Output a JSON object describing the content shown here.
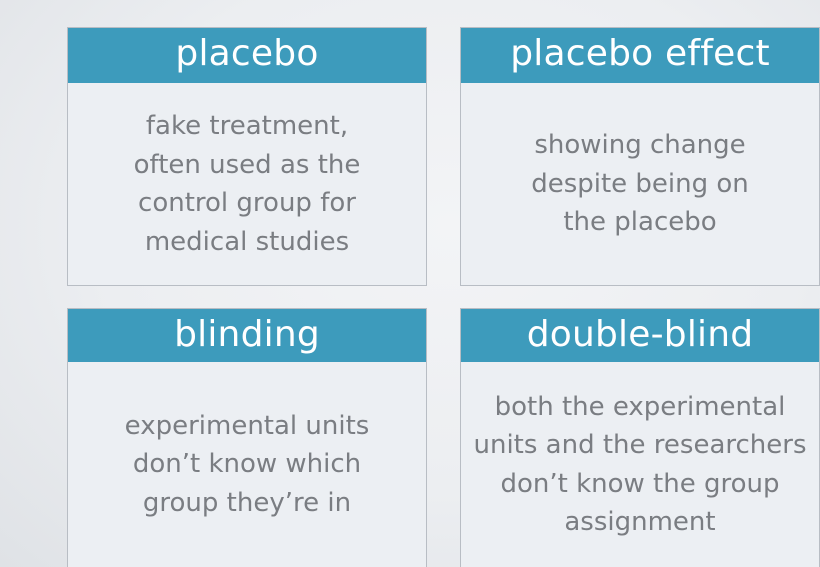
{
  "cards": [
    {
      "term": "placebo",
      "definition_lines": [
        "fake treatment,",
        "often used as the",
        "control group for",
        "medical studies"
      ]
    },
    {
      "term": "placebo effect",
      "definition_lines": [
        "showing change",
        "despite being on",
        "the placebo"
      ]
    },
    {
      "term": "blinding",
      "definition_lines": [
        "experimental units",
        "don’t know which",
        "group they’re in"
      ]
    },
    {
      "term": "double-blind",
      "definition_lines": [
        "both the experimental",
        "units and the researchers",
        "don’t know the group",
        "assignment"
      ]
    }
  ],
  "colors": {
    "header_background": "#3d9bbc",
    "header_text": "#ffffff",
    "body_text": "#7a7d82",
    "card_background": "#eceff3"
  }
}
